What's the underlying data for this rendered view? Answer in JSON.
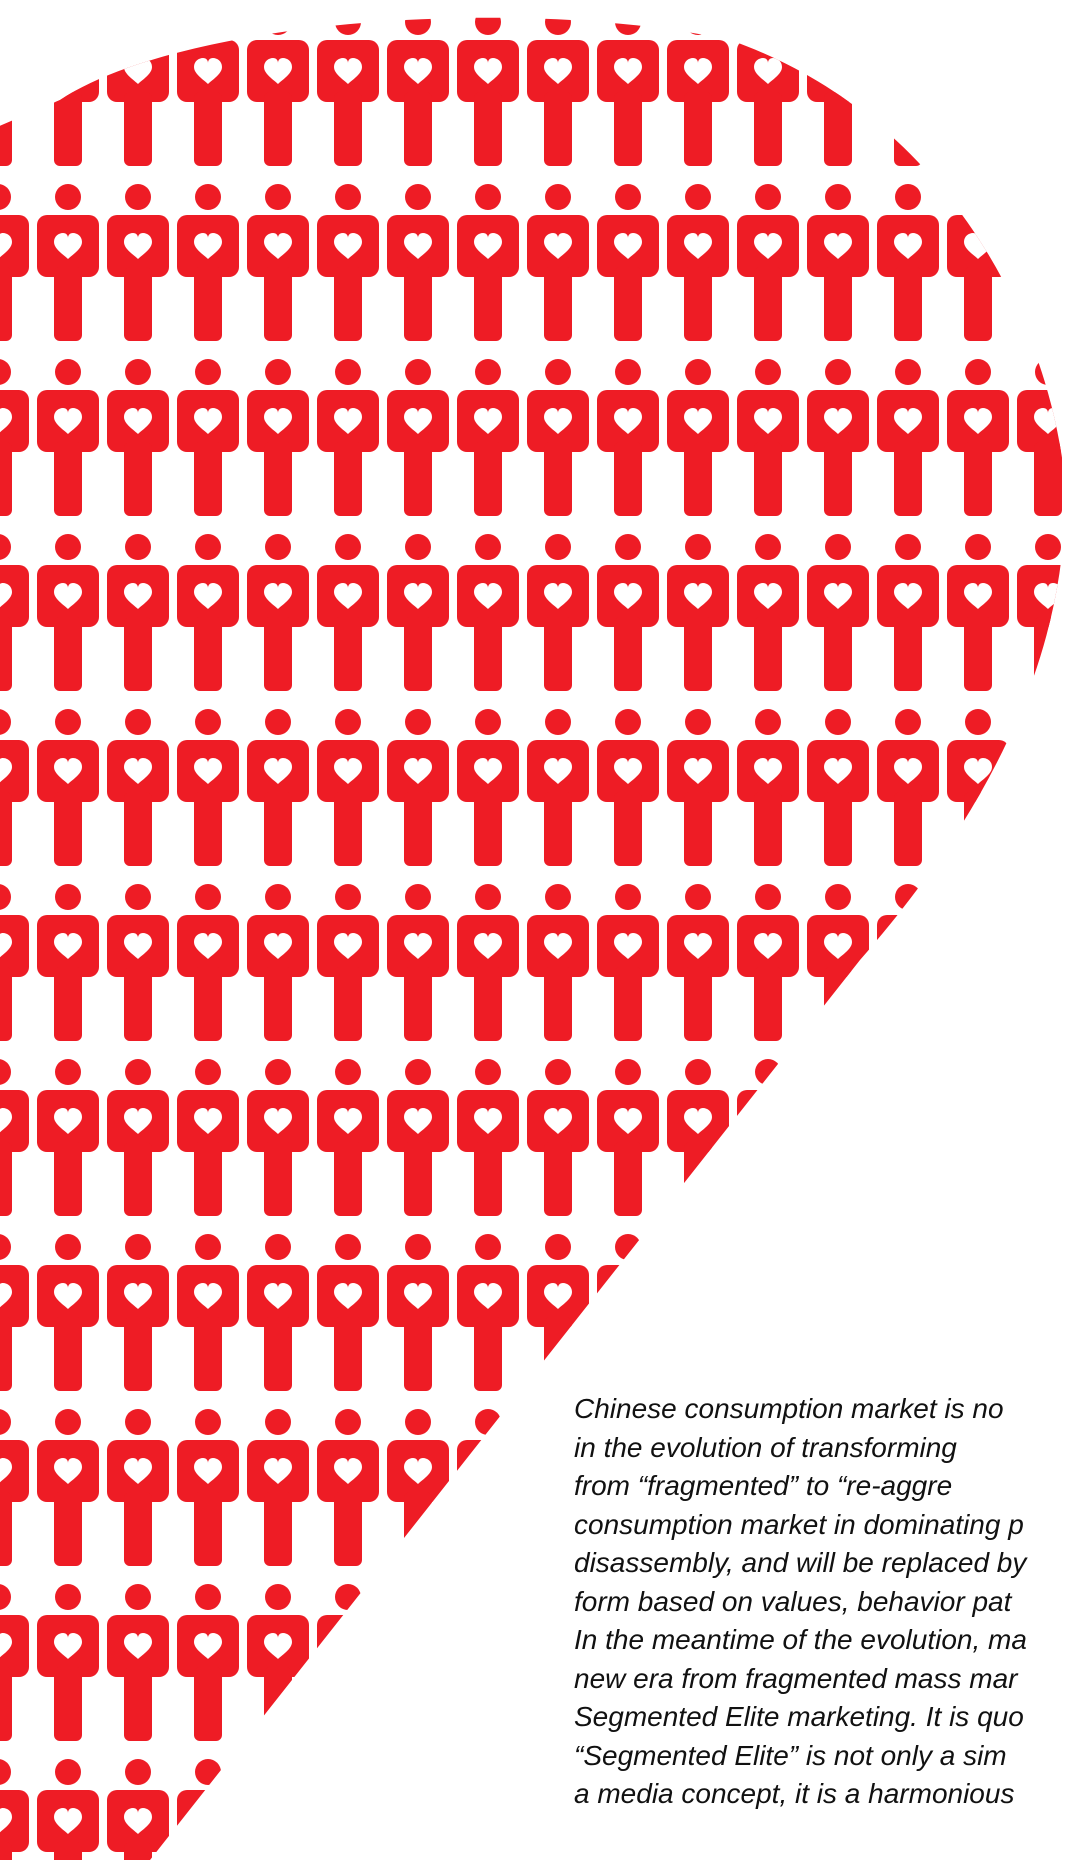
{
  "colors": {
    "figure_red": "#ee1c25",
    "heart_white": "#ffffff",
    "text": "#111111",
    "background": "#ffffff"
  },
  "icons": {
    "figure": "person-with-heart-icon",
    "shape": "heart-shape"
  },
  "text_lines": [
    " Chinese consumption market is no",
    " in the evolution of transforming",
    " from “fragmented” to “re-aggre",
    " consumption market in dominating p",
    "disassembly, and will be replaced by",
    " form based on values, behavior pat",
    "In the meantime of the evolution, ma",
    " new era from fragmented mass mar",
    " Segmented Elite marketing. It is quo",
    "“Segmented Elite” is not only a sim",
    " a media concept, it is a harmonious"
  ]
}
